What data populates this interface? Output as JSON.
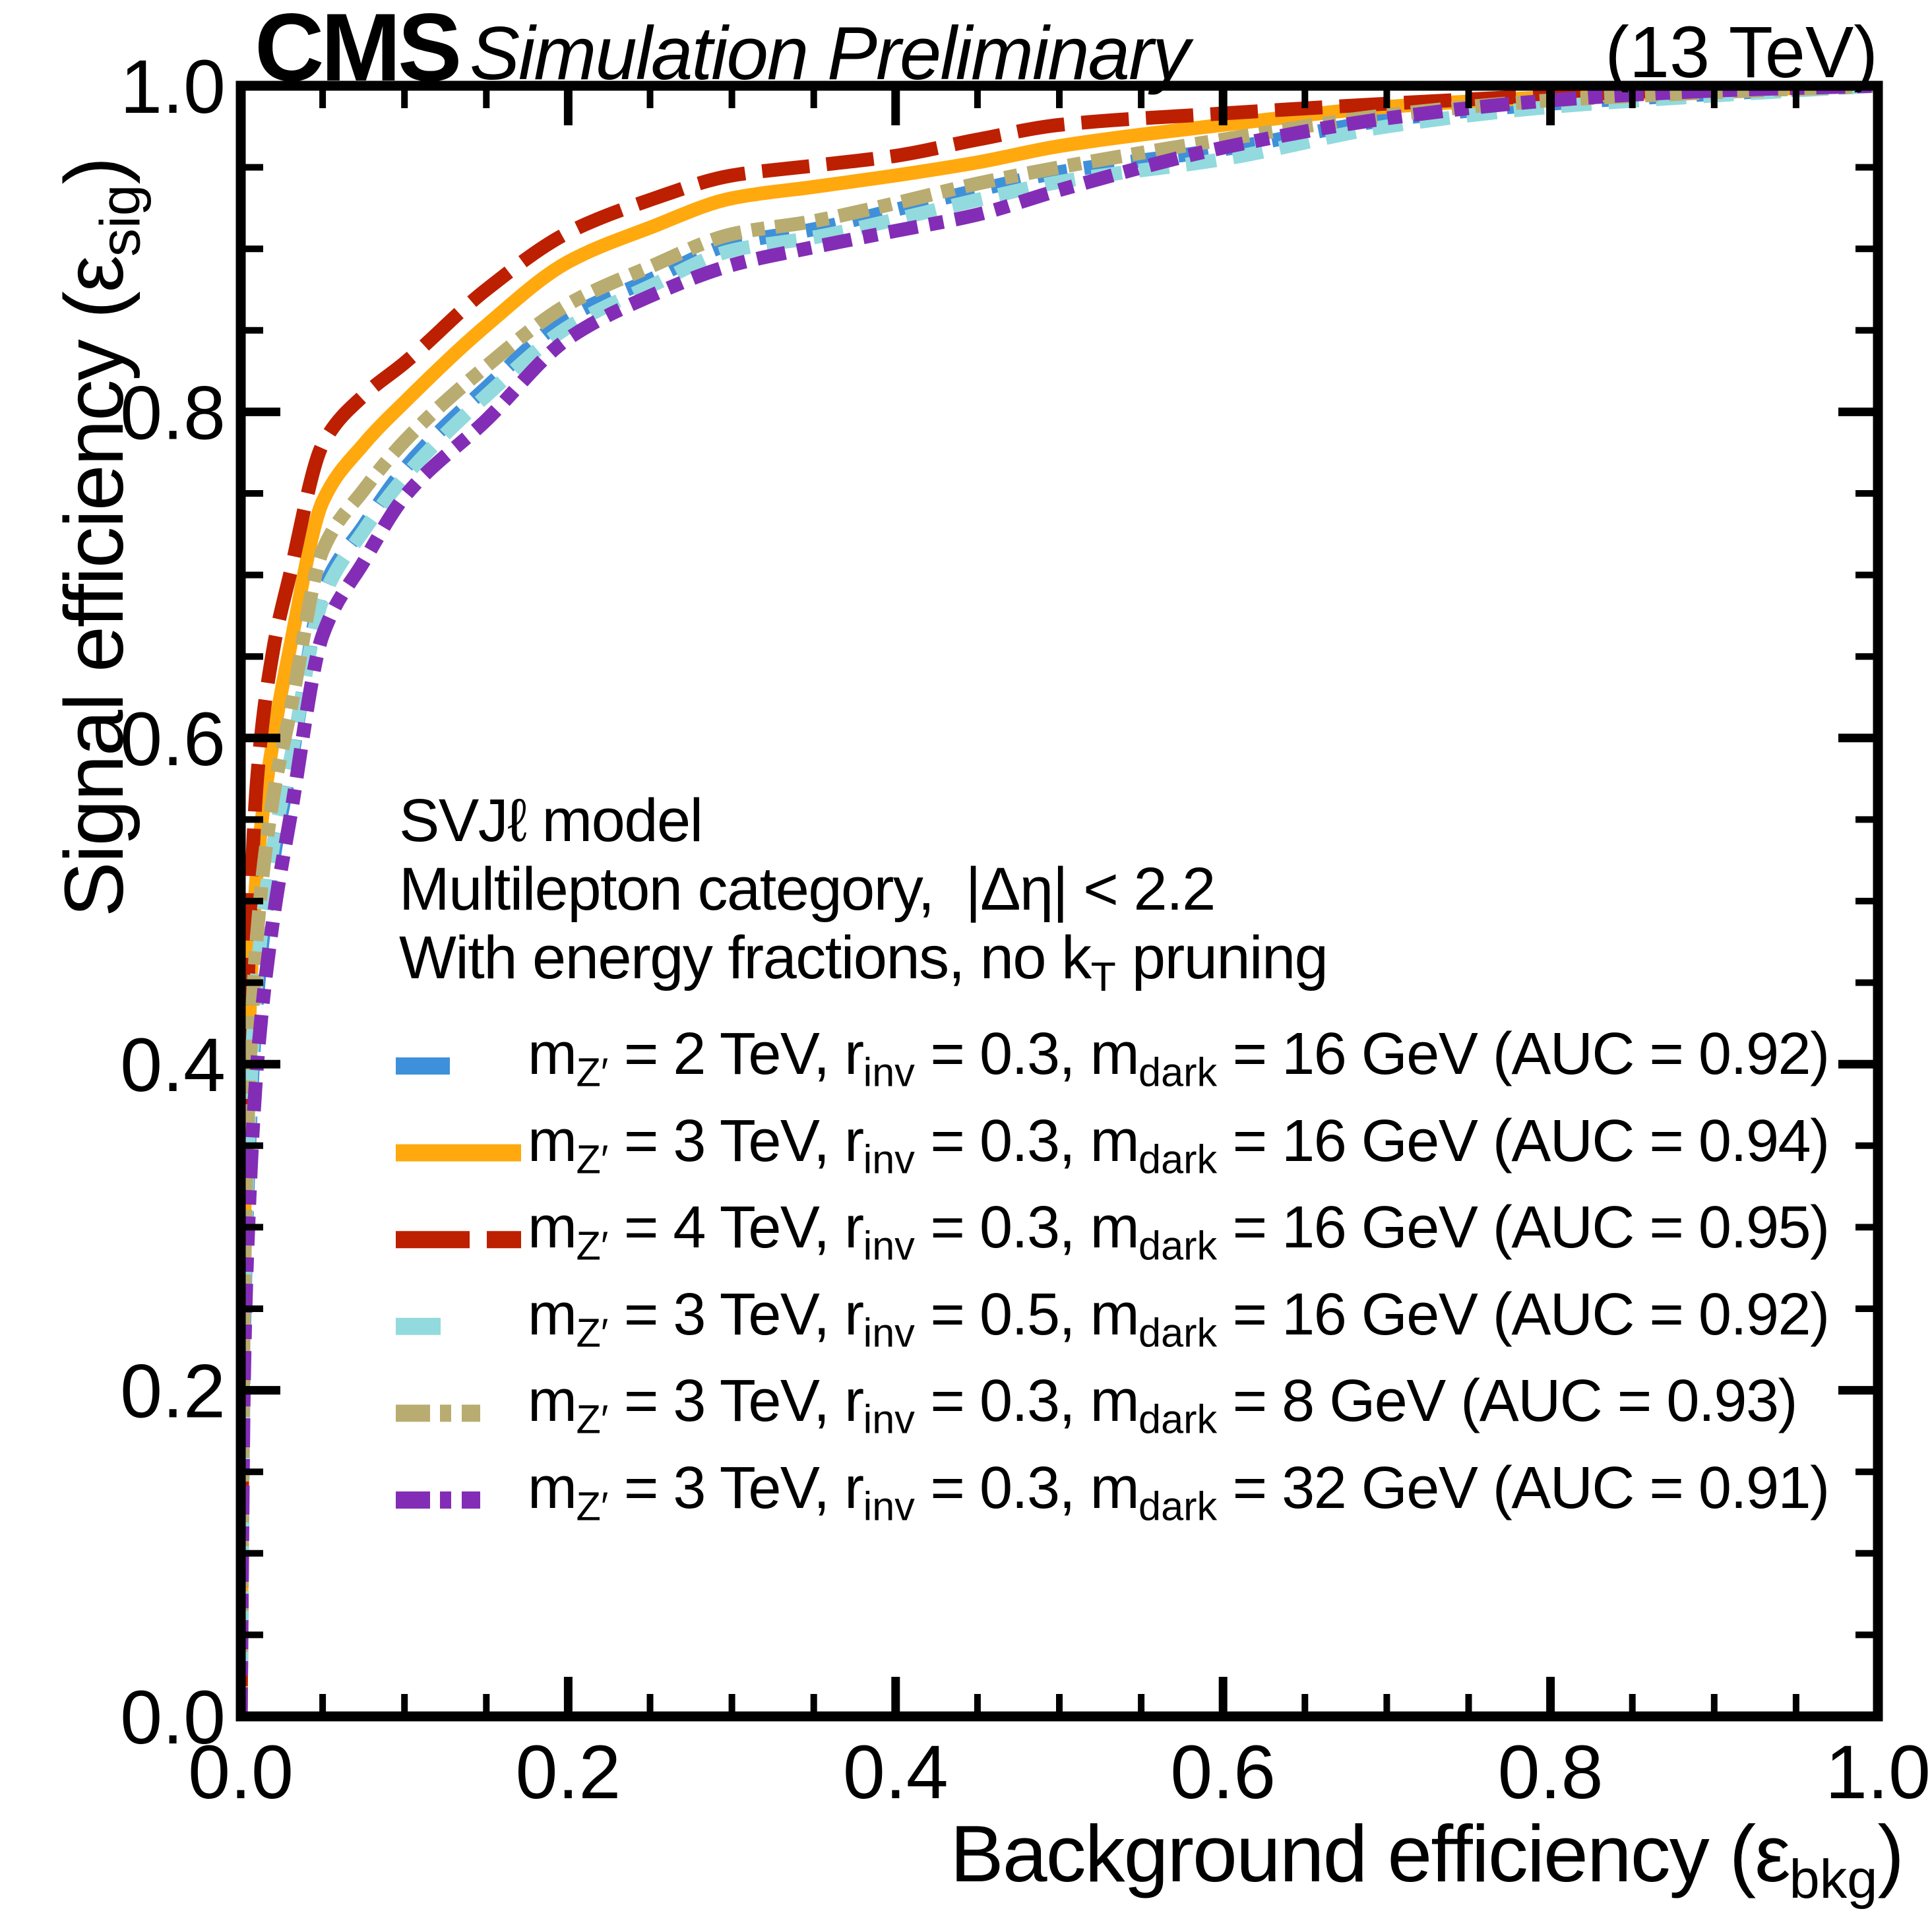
{
  "header": {
    "experiment": "CMS",
    "label": "Simulation Preliminary",
    "energy": "(13 TeV)"
  },
  "annotations": [
    [
      {
        "t": "SVJℓ model"
      }
    ],
    [
      {
        "t": "Multilepton category,  |Δη| < 2.2"
      }
    ],
    [
      {
        "t": "With energy fractions, no k"
      },
      {
        "s": "T"
      },
      {
        "t": " pruning"
      }
    ]
  ],
  "axes": {
    "x": {
      "title": [
        {
          "t": "Background efficiency (ε"
        },
        {
          "s": "bkg"
        },
        {
          "t": ")"
        }
      ],
      "tick_labels": [
        "0.0",
        "0.2",
        "0.4",
        "0.6",
        "0.8",
        "1.0"
      ],
      "lim": [
        0,
        1
      ],
      "major_step": 0.2,
      "minor_step": 0.05
    },
    "y": {
      "title": [
        {
          "t": "Signal efficiency (ε"
        },
        {
          "s": "sig"
        },
        {
          "t": ")"
        }
      ],
      "tick_labels": [
        "0.0",
        "0.2",
        "0.4",
        "0.6",
        "0.8",
        "1.0"
      ],
      "lim": [
        0,
        1
      ],
      "major_step": 0.2,
      "minor_step": 0.05
    }
  },
  "legend": {
    "entries": [
      {
        "legend_dash": [
          82,
          108
        ],
        "label": [
          {
            "t": "m"
          },
          {
            "s": "Z′"
          },
          {
            "t": " = 2 TeV, r"
          },
          {
            "s": "inv"
          },
          {
            "t": " = 0.3, m"
          },
          {
            "s": "dark"
          },
          {
            "t": " = 16 GeV (AUC = 0.92)"
          }
        ]
      },
      {
        "legend_dash": null,
        "label": [
          {
            "t": "m"
          },
          {
            "s": "Z′"
          },
          {
            "t": " = 3 TeV, r"
          },
          {
            "s": "inv"
          },
          {
            "t": " = 0.3, m"
          },
          {
            "s": "dark"
          },
          {
            "t": " = 16 GeV (AUC = 0.94)"
          }
        ]
      },
      {
        "legend_dash": [
          112,
          26,
          52
        ],
        "label": [
          {
            "t": "m"
          },
          {
            "s": "Z′"
          },
          {
            "t": " = 4 TeV, r"
          },
          {
            "s": "inv"
          },
          {
            "t": " = 0.3, m"
          },
          {
            "s": "dark"
          },
          {
            "t": " = 16 GeV (AUC = 0.95)"
          }
        ]
      },
      {
        "legend_dash": [
          68,
          122
        ],
        "label": [
          {
            "t": "m"
          },
          {
            "s": "Z′"
          },
          {
            "t": " = 3 TeV, r"
          },
          {
            "s": "inv"
          },
          {
            "t": " = 0.5, m"
          },
          {
            "s": "dark"
          },
          {
            "t": " = 16 GeV (AUC = 0.92)"
          }
        ]
      },
      {
        "legend_dash": [
          52,
          15,
          17,
          16,
          28,
          62
        ],
        "label": [
          {
            "t": "m"
          },
          {
            "s": "Z′"
          },
          {
            "t": " = 3 TeV, r"
          },
          {
            "s": "inv"
          },
          {
            "t": " = 0.3, m"
          },
          {
            "s": "dark"
          },
          {
            "t": " = 8 GeV (AUC = 0.93)"
          }
        ]
      },
      {
        "legend_dash": [
          52,
          15,
          17,
          16,
          28,
          62
        ],
        "label": [
          {
            "t": "m"
          },
          {
            "s": "Z′"
          },
          {
            "t": " = 3 TeV, r"
          },
          {
            "s": "inv"
          },
          {
            "t": " = 0.3, m"
          },
          {
            "s": "dark"
          },
          {
            "t": " = 32 GeV (AUC = 0.91)"
          }
        ]
      }
    ]
  },
  "chart_data": {
    "type": "line",
    "title": "",
    "xlabel": "Background efficiency (ε_bkg)",
    "ylabel": "Signal efficiency (ε_sig)",
    "xlim": [
      0,
      1
    ],
    "ylim": [
      0,
      1
    ],
    "grid": false,
    "legend_position": "inside center-left",
    "x": [
      0,
      0.002,
      0.005,
      0.01,
      0.02,
      0.03,
      0.05,
      0.075,
      0.1,
      0.15,
      0.2,
      0.25,
      0.3,
      0.35,
      0.4,
      0.45,
      0.5,
      0.6,
      0.7,
      0.8,
      0.9,
      1.0
    ],
    "series": [
      {
        "name": "m_Z' = 2 TeV, r_inv = 0.3, m_dark = 16 GeV",
        "auc": 0.92,
        "color": "#3f90da",
        "dash": [
          46,
          26
        ],
        "y": [
          0,
          0.23,
          0.345,
          0.44,
          0.525,
          0.58,
          0.69,
          0.73,
          0.765,
          0.815,
          0.858,
          0.881,
          0.903,
          0.912,
          0.924,
          0.936,
          0.947,
          0.961,
          0.979,
          0.989,
          0.995,
          1.0
        ]
      },
      {
        "name": "m_Z' = 3 TeV, r_inv = 0.3, m_dark = 16 GeV",
        "auc": 0.94,
        "color": "#ffa90e",
        "dash": null,
        "y": [
          0,
          0.29,
          0.42,
          0.52,
          0.6,
          0.655,
          0.745,
          0.78,
          0.806,
          0.853,
          0.892,
          0.913,
          0.931,
          0.938,
          0.945,
          0.953,
          0.963,
          0.976,
          0.987,
          0.993,
          0.997,
          1.0
        ]
      },
      {
        "name": "m_Z' = 4 TeV, r_inv = 0.3, m_dark = 16 GeV",
        "auc": 0.95,
        "color": "#bd1f01",
        "dash": [
          72,
          26
        ],
        "y": [
          0,
          0.33,
          0.47,
          0.575,
          0.655,
          0.7,
          0.78,
          0.81,
          0.83,
          0.875,
          0.91,
          0.93,
          0.945,
          0.951,
          0.957,
          0.967,
          0.976,
          0.983,
          0.989,
          0.994,
          0.998,
          1.0
        ]
      },
      {
        "name": "m_Z' = 3 TeV, r_inv = 0.5, m_dark = 16 GeV",
        "auc": 0.92,
        "color": "#92dadd",
        "dash": [
          46,
          26
        ],
        "y": [
          0,
          0.245,
          0.36,
          0.455,
          0.535,
          0.585,
          0.685,
          0.727,
          0.76,
          0.81,
          0.852,
          0.877,
          0.899,
          0.907,
          0.918,
          0.93,
          0.941,
          0.955,
          0.975,
          0.987,
          0.994,
          1.0
        ]
      },
      {
        "name": "m_Z' = 3 TeV, r_inv = 0.3, m_dark = 8 GeV",
        "auc": 0.93,
        "color": "#b9ac70",
        "dash": [
          46,
          16,
          20,
          16
        ],
        "y": [
          0,
          0.26,
          0.385,
          0.48,
          0.565,
          0.615,
          0.715,
          0.752,
          0.782,
          0.828,
          0.866,
          0.889,
          0.909,
          0.917,
          0.928,
          0.94,
          0.95,
          0.967,
          0.982,
          0.991,
          0.996,
          1.0
        ]
      },
      {
        "name": "m_Z' = 3 TeV, r_inv = 0.3, m_dark = 32 GeV",
        "auc": 0.91,
        "color": "#832db6",
        "dash": [
          44,
          18,
          22,
          18
        ],
        "y": [
          0,
          0.21,
          0.31,
          0.4,
          0.49,
          0.55,
          0.663,
          0.708,
          0.748,
          0.795,
          0.845,
          0.871,
          0.89,
          0.901,
          0.911,
          0.921,
          0.936,
          0.962,
          0.98,
          0.991,
          0.997,
          1.0
        ]
      }
    ]
  }
}
